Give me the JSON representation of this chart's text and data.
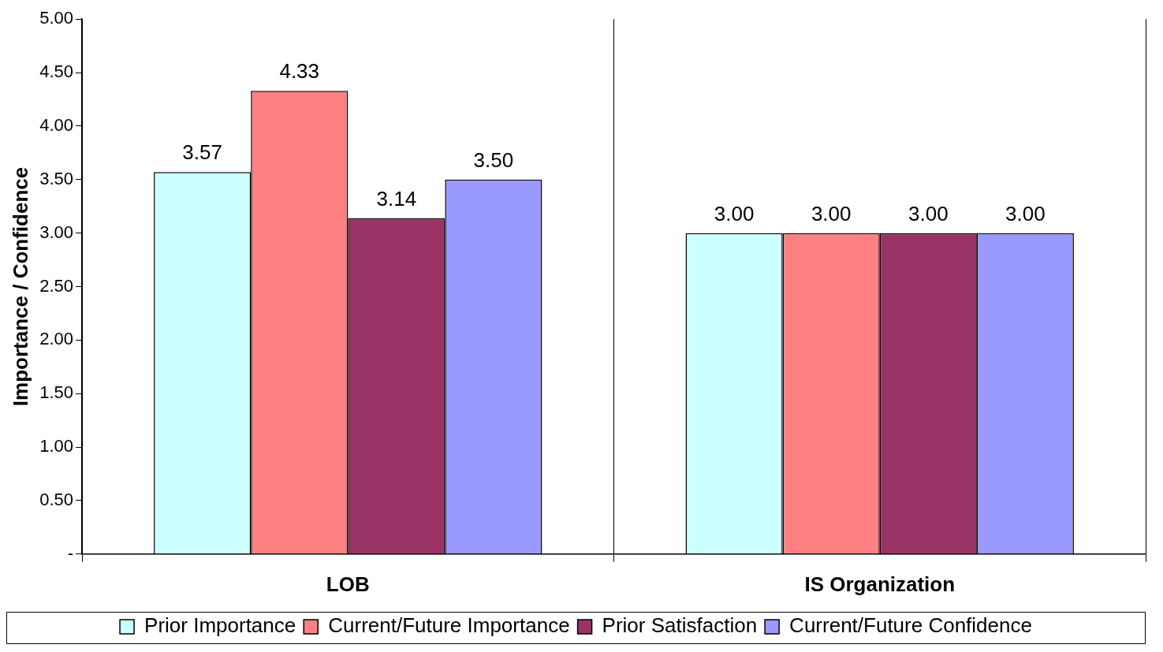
{
  "chart_data": {
    "type": "bar",
    "ylabel": "Importance / Confidence",
    "categories": [
      "LOB",
      "IS Organization"
    ],
    "ylim": [
      0,
      5
    ],
    "yticks": [
      {
        "value": 0,
        "label": "-"
      },
      {
        "value": 0.5,
        "label": "0.50"
      },
      {
        "value": 1,
        "label": "1.00"
      },
      {
        "value": 1.5,
        "label": "1.50"
      },
      {
        "value": 2,
        "label": "2.00"
      },
      {
        "value": 2.5,
        "label": "2.50"
      },
      {
        "value": 3,
        "label": "3.00"
      },
      {
        "value": 3.5,
        "label": "3.50"
      },
      {
        "value": 4,
        "label": "4.00"
      },
      {
        "value": 4.5,
        "label": "4.50"
      },
      {
        "value": 5,
        "label": "5.00"
      }
    ],
    "grid": "x",
    "legend": "bottom",
    "series": [
      {
        "name": "Prior Importance",
        "color": "#ccffff",
        "values": [
          3.57,
          3
        ],
        "value_labels": [
          "3.57",
          "3.00"
        ]
      },
      {
        "name": "Current/Future Importance",
        "color": "#ff8080",
        "values": [
          4.33,
          3
        ],
        "value_labels": [
          "4.33",
          "3.00"
        ]
      },
      {
        "name": "Prior Satisfaction",
        "color": "#993366",
        "values": [
          3.14,
          3
        ],
        "value_labels": [
          "3.14",
          "3.00"
        ]
      },
      {
        "name": "Current/Future Confidence",
        "color": "#9999ff",
        "values": [
          3.5,
          3
        ],
        "value_labels": [
          "3.50",
          "3.00"
        ]
      }
    ]
  }
}
